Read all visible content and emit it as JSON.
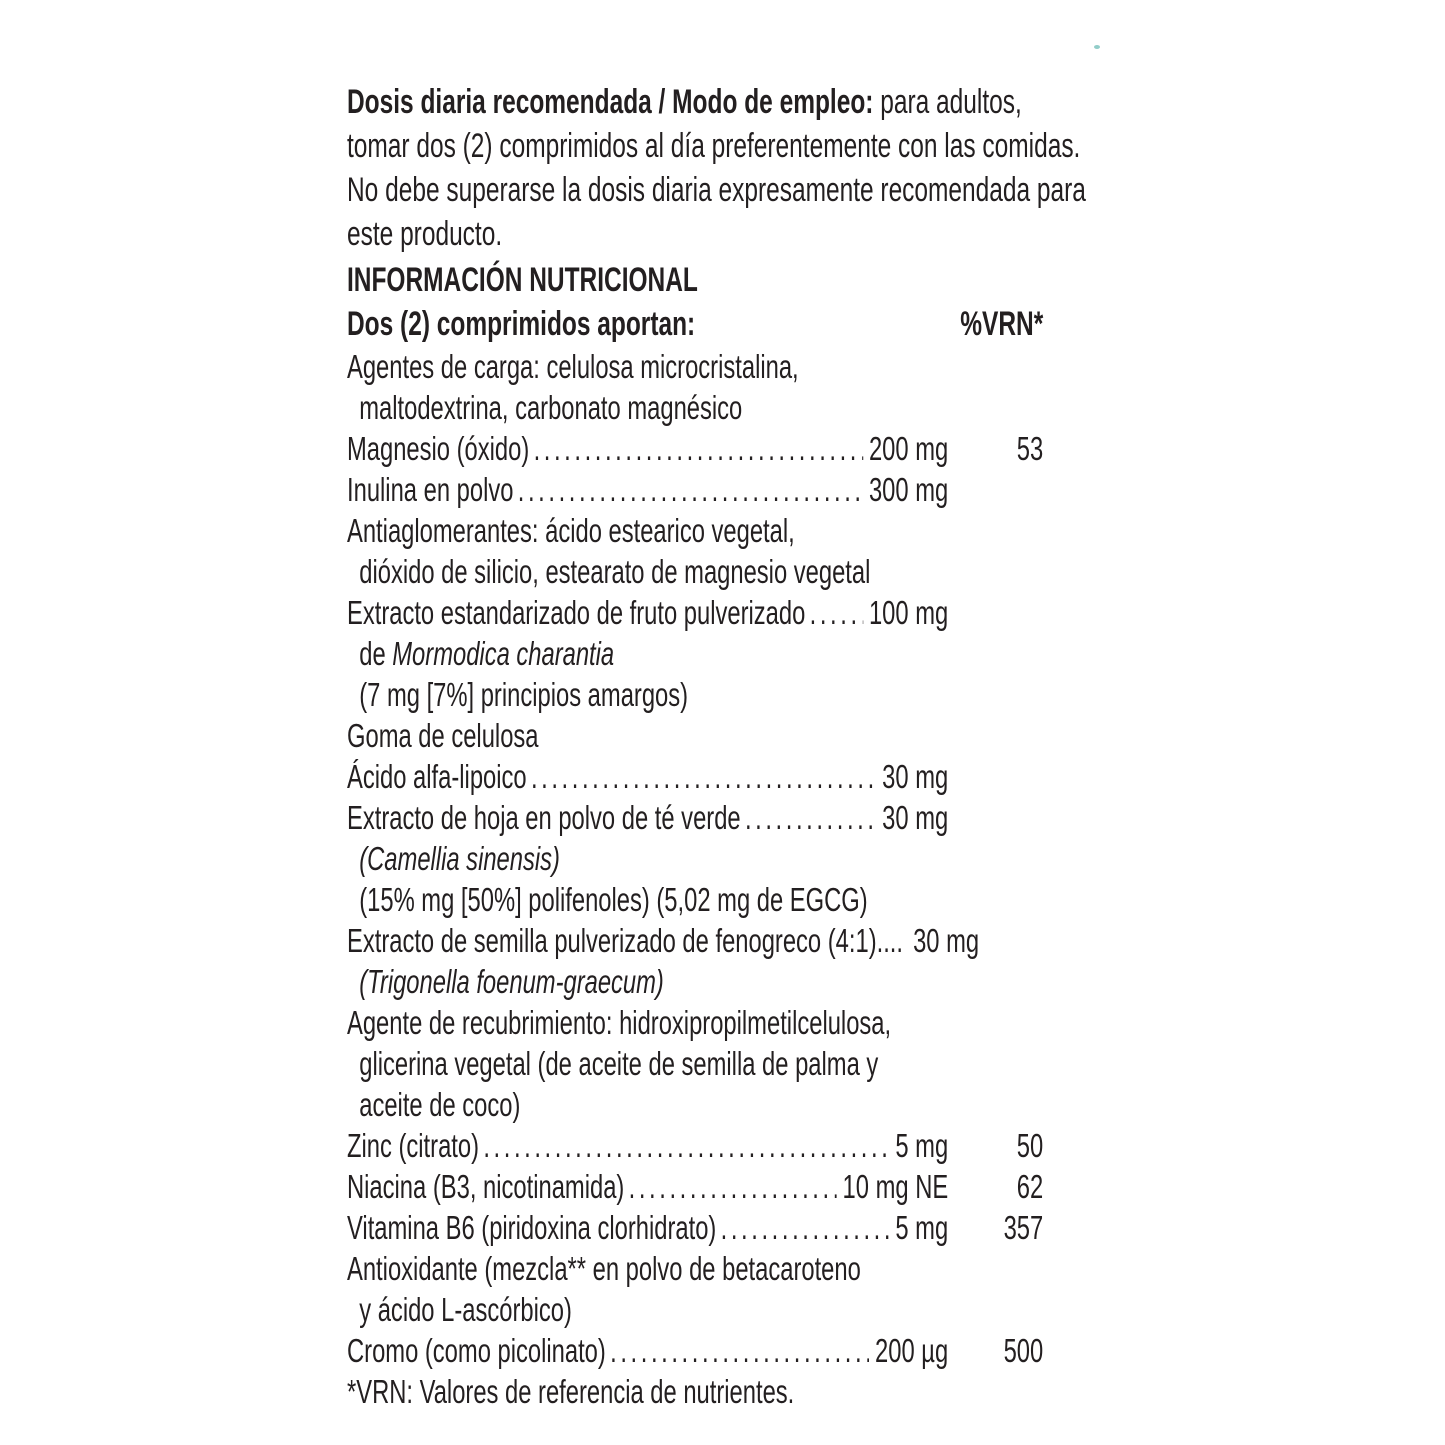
{
  "colors": {
    "ink": "#231f20",
    "paper": "#ffffff",
    "artifact": "#7fc4c0"
  },
  "directions": {
    "line1_bold": "Dosis diaria recomendada / Modo de empleo:",
    "line1_rest": " para adultos,",
    "line2": "tomar dos (2) comprimidos al día preferentemente con las comidas.",
    "line3": "No debe superarse la dosis diaria expresamente recomendada para",
    "line4": "este producto."
  },
  "nutrition": {
    "title": "INFORMACIÓN NUTRICIONAL",
    "serving_label": "Dos (2) comprimidos aportan:",
    "vrn_header": "%VRN*",
    "rows": [
      {
        "label": "Agentes de carga: celulosa microcristalina,"
      },
      {
        "label": "maltodextrina, carbonato magnésico",
        "indent": 1
      },
      {
        "label": "Magnesio (óxido)",
        "dots": true,
        "amount": "200 mg",
        "vrn": "53"
      },
      {
        "label": "Inulina en polvo",
        "dots": true,
        "amount": "300 mg"
      },
      {
        "label": "Antiaglomerantes: ácido estearico vegetal,"
      },
      {
        "label": "dióxido de silicio, estearato de magnesio vegetal",
        "indent": 1
      },
      {
        "label": "Extracto estandarizado de fruto pulverizado",
        "dots": true,
        "amount": "100 mg"
      },
      {
        "prefix": "de ",
        "italic": "Mormodica charantia",
        "indent": 1
      },
      {
        "label": "(7 mg [7%] principios amargos)",
        "indent": 1
      },
      {
        "label": "Goma de celulosa"
      },
      {
        "label": "Ácido alfa-lipoico",
        "dots": true,
        "amount": "30 mg"
      },
      {
        "label": "Extracto de hoja en polvo de té verde",
        "dots": true,
        "amount": "30 mg"
      },
      {
        "italic": "(Camellia sinensis)",
        "indent": 1
      },
      {
        "label": "(15% mg [50%] polifenoles) (5,02 mg de EGCG)",
        "indent": 1
      },
      {
        "label": "Extracto de semilla pulverizado de fenogreco (4:1)....",
        "amount": "30 mg"
      },
      {
        "italic": "(Trigonella foenum-graecum)",
        "indent": 1
      },
      {
        "label": "Agente de recubrimiento: hidroxipropilmetilcelulosa,"
      },
      {
        "label": "glicerina vegetal (de aceite de semilla de palma y",
        "indent": 1
      },
      {
        "label": "aceite de coco)",
        "indent": 1
      },
      {
        "label": "Zinc (citrato)",
        "dots": true,
        "amount": "5 mg",
        "vrn": "50"
      },
      {
        "label": "Niacina (B3, nicotinamida)",
        "dots": true,
        "amount": "10 mg NE",
        "vrn": "62"
      },
      {
        "label": "Vitamina B6 (piridoxina clorhidrato)",
        "dots": true,
        "amount": "5 mg",
        "vrn": "357"
      },
      {
        "label": "Antioxidante (mezcla** en polvo de betacaroteno"
      },
      {
        "label": "y ácido L-ascórbico)",
        "indent": 1
      },
      {
        "label": "Cromo (como picolinato)",
        "dots": true,
        "amount": "200 µg",
        "vrn": "500"
      }
    ],
    "footnote": "*VRN: Valores de referencia de nutrientes."
  }
}
